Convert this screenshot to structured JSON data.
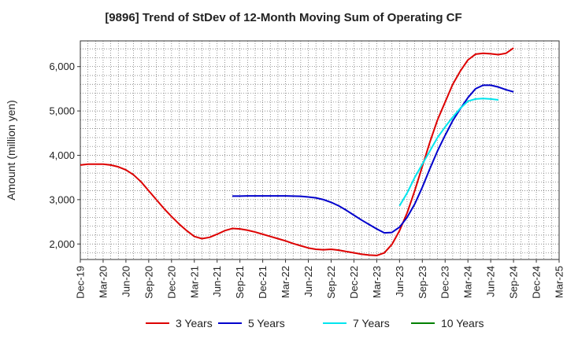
{
  "chart_data": {
    "type": "line",
    "title": "[9896]  Trend of StDev of 12-Month Moving Sum of Operating CF",
    "ylabel": "Amount (million yen)",
    "xlabel": "",
    "ylim": [
      1650,
      6580
    ],
    "xticks": [
      "Dec-19",
      "Mar-20",
      "Jun-20",
      "Sep-20",
      "Dec-20",
      "Mar-21",
      "Jun-21",
      "Sep-21",
      "Dec-21",
      "Mar-22",
      "Jun-22",
      "Sep-22",
      "Dec-22",
      "Mar-23",
      "Jun-23",
      "Sep-23",
      "Dec-23",
      "Mar-24",
      "Jun-24",
      "Sep-24",
      "Dec-24",
      "Mar-25"
    ],
    "yticks": [
      2000,
      3000,
      4000,
      5000,
      6000
    ],
    "ytick_labels": [
      "2,000",
      "3,000",
      "4,000",
      "5,000",
      "6,000"
    ],
    "grid": true,
    "legend_position": "bottom",
    "series": [
      {
        "name": "3 Years",
        "color": "#dd0000",
        "start": "Dec-19",
        "values": [
          3780,
          3800,
          3800,
          3800,
          3780,
          3740,
          3670,
          3560,
          3400,
          3200,
          3000,
          2800,
          2620,
          2450,
          2300,
          2170,
          2120,
          2150,
          2220,
          2300,
          2350,
          2340,
          2310,
          2270,
          2220,
          2170,
          2120,
          2070,
          2010,
          1960,
          1910,
          1880,
          1870,
          1880,
          1860,
          1830,
          1800,
          1770,
          1750,
          1740,
          1800,
          1990,
          2300,
          2700,
          3200,
          3750,
          4300,
          4800,
          5200,
          5600,
          5900,
          6150,
          6280,
          6300,
          6290,
          6270,
          6300,
          6420
        ]
      },
      {
        "name": "5 Years",
        "color": "#0000cc",
        "start": "Aug-21",
        "values": [
          3080,
          3080,
          3085,
          3085,
          3085,
          3085,
          3085,
          3085,
          3080,
          3075,
          3060,
          3040,
          3000,
          2940,
          2860,
          2760,
          2650,
          2540,
          2440,
          2340,
          2250,
          2260,
          2380,
          2600,
          2900,
          3280,
          3700,
          4100,
          4450,
          4780,
          5050,
          5300,
          5500,
          5580,
          5580,
          5540,
          5480,
          5430
        ]
      },
      {
        "name": "7 Years",
        "color": "#00e5ee",
        "start": "Jun-23",
        "values": [
          2860,
          3150,
          3500,
          3800,
          4100,
          4400,
          4640,
          4860,
          5060,
          5220,
          5270,
          5280,
          5270,
          5250
        ]
      },
      {
        "name": "10 Years",
        "color": "#008000",
        "start": "",
        "values": []
      }
    ]
  }
}
